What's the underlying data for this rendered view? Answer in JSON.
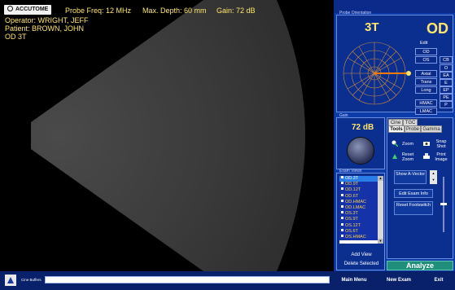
{
  "header": {
    "logo_text": "ACCUTOME",
    "probe_freq": "Probe Freq: 12 MHz",
    "max_depth": "Max. Depth: 60 mm",
    "gain": "Gain: 72 dB"
  },
  "patient": {
    "operator": "Operator: WRIGHT, JEFF",
    "patient": "Patient: BROWN, JOHN",
    "view": "OD  3T"
  },
  "probe_panel": {
    "title": "Probe Orientation",
    "clock_label": "3T",
    "eye_label": "OD",
    "edit_label": "Edit",
    "options_left": [
      "OD",
      "OS",
      "Axial",
      "Trans",
      "Long",
      "HMAC",
      "LMAC"
    ],
    "options_right": [
      "CB",
      "O",
      "EA",
      "E",
      "EP",
      "PE",
      "P"
    ]
  },
  "gain_panel": {
    "title": "Gain",
    "value": "72 dB"
  },
  "tabs": {
    "row1": [
      "Cine",
      "TGC"
    ],
    "row2": [
      "Tools",
      "Probe",
      "Gamma"
    ],
    "active": "Tools"
  },
  "tools": {
    "zoom": "Zoom",
    "snap_shot": "Snap Shot",
    "reset_zoom": "Reset Zoom",
    "print_image": "Print Image",
    "show_a_vector": "Show A-Vector",
    "edit_exam_info": "Edit Exam Info",
    "reset_footswitch": "Reset Footswitch"
  },
  "views": {
    "title": "Exam Views",
    "items": [
      "OD.3T",
      "OD.9T",
      "OD.12T",
      "OD.6T",
      "OD.HMAC",
      "OD.LMAC",
      "OS.3T",
      "OS.9T",
      "OS.12T",
      "OS.6T",
      "OS.HMAC"
    ],
    "selected": 0,
    "add_view": "Add View",
    "delete_selected": "Delete Selected"
  },
  "analyze_label": "Analyze",
  "bottom": {
    "cine_label": "Cine Buffers",
    "main_menu": "Main Menu",
    "new_exam": "New Exam",
    "exit": "Exit"
  },
  "colors": {
    "text_yellow": "#ffe66b",
    "panel_blue": "#0d3ca8",
    "analyze_green": "#1f8e7a",
    "probe_marker": "#ff7a00"
  }
}
